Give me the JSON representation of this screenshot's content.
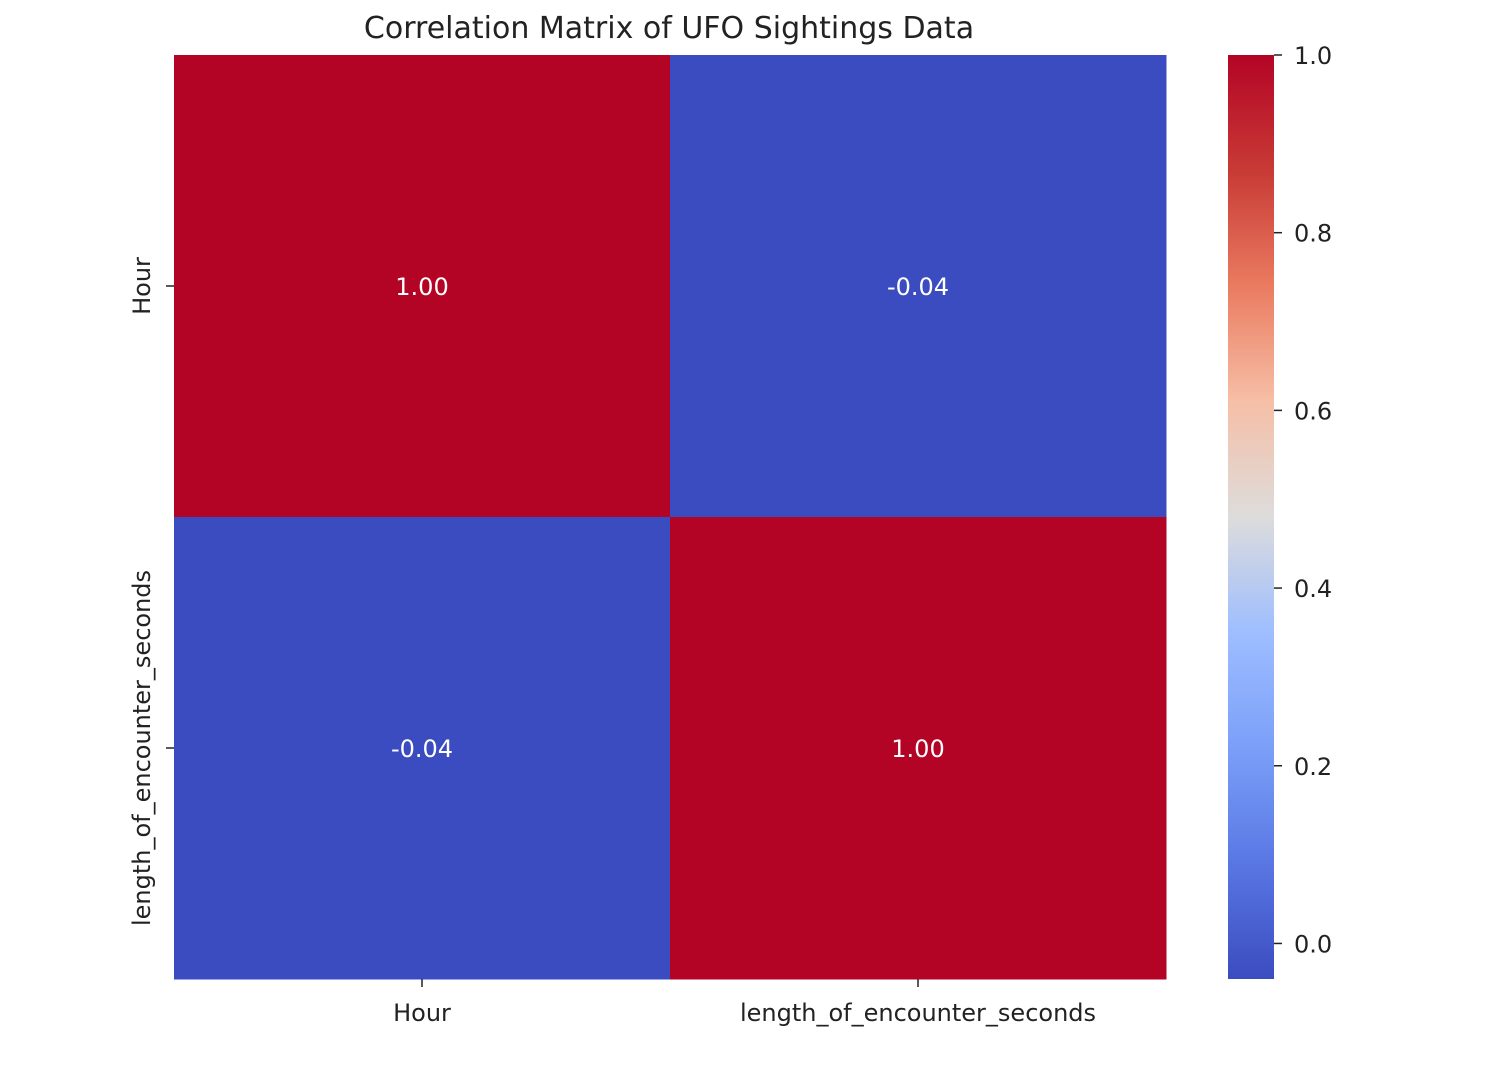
{
  "chart_data": {
    "type": "heatmap",
    "title": "Correlation Matrix of UFO Sightings Data",
    "x_labels": [
      "Hour",
      "length_of_encounter_seconds"
    ],
    "y_labels": [
      "Hour",
      "length_of_encounter_seconds"
    ],
    "values": [
      [
        1.0,
        -0.04
      ],
      [
        -0.04,
        1.0
      ]
    ],
    "cell_labels": [
      [
        "1.00",
        "-0.04"
      ],
      [
        "-0.04",
        "1.00"
      ]
    ],
    "colormap": "coolwarm",
    "colors": {
      "high": "#b40426",
      "low": "#3b4cc0",
      "mid": "#dddcdc",
      "annotation": "#ffffff"
    },
    "colorbar": {
      "range": [
        -0.04,
        1.0
      ],
      "ticks": [
        0.0,
        0.2,
        0.4,
        0.6,
        0.8,
        1.0
      ],
      "tick_labels": [
        "0.0",
        "0.2",
        "0.4",
        "0.6",
        "0.8",
        "1.0"
      ]
    },
    "xlabel": "",
    "ylabel": ""
  }
}
